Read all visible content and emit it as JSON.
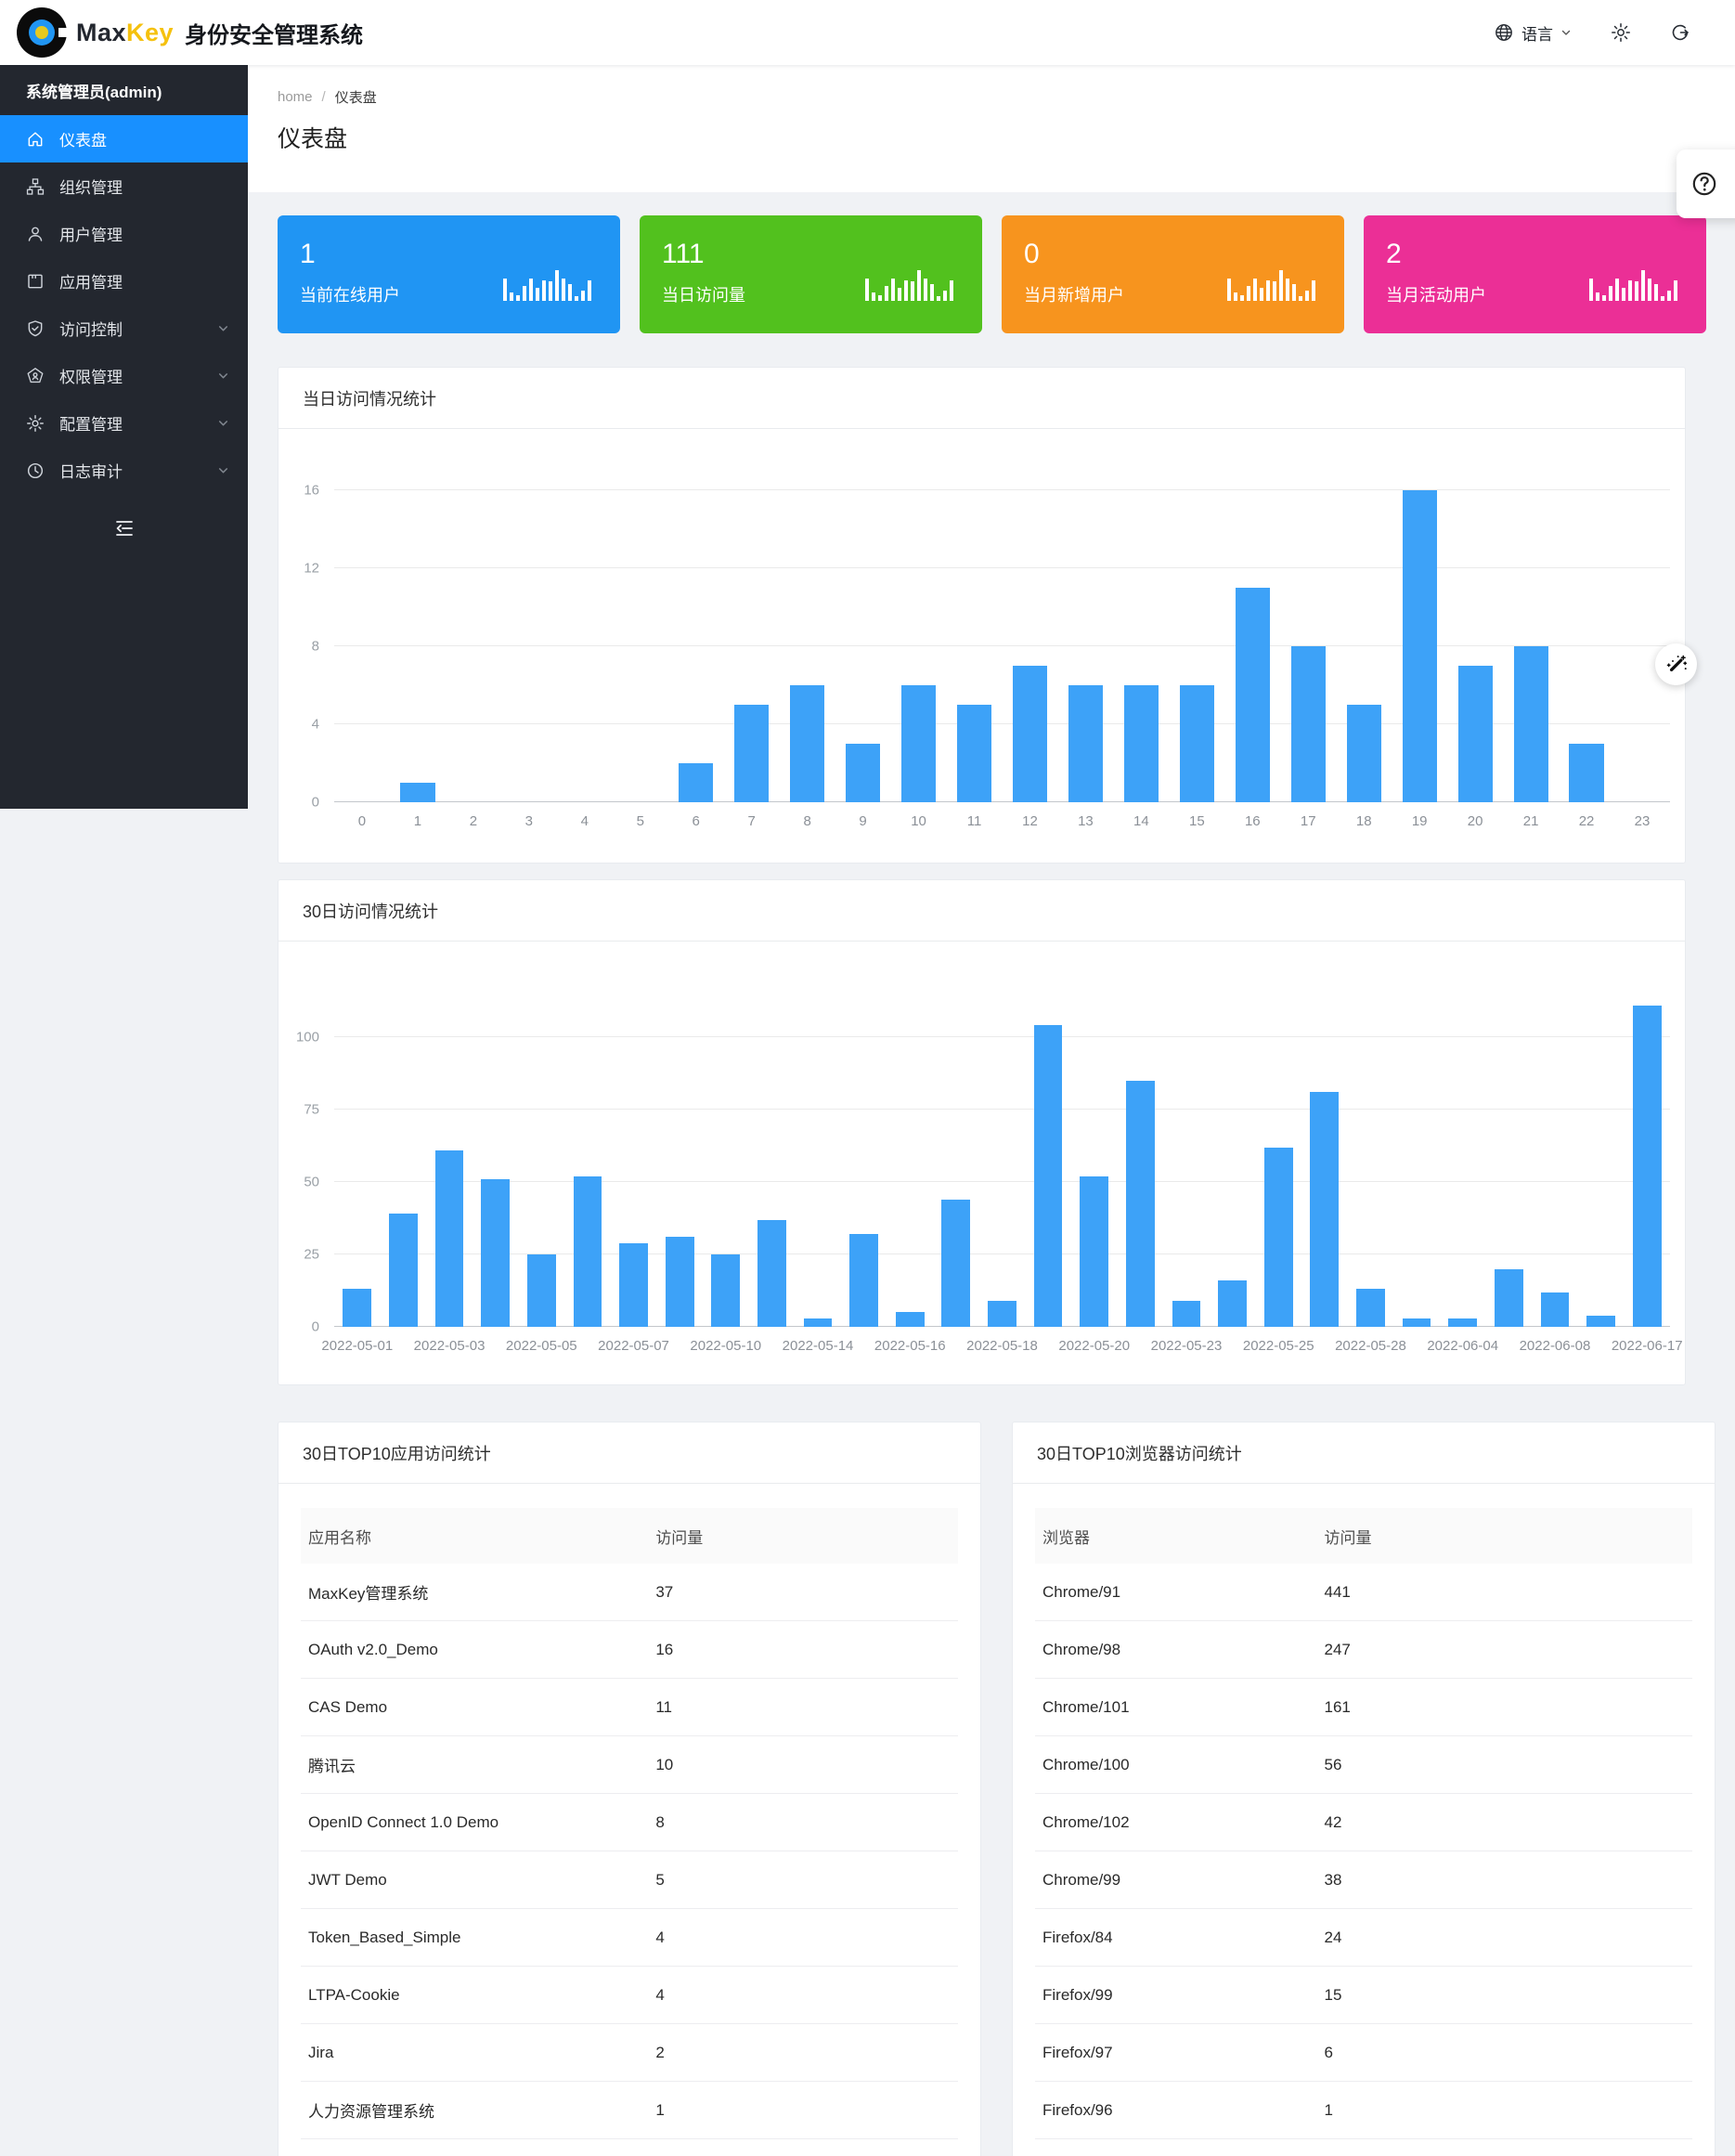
{
  "topbar": {
    "brand_max": "Max",
    "brand_key": "Key",
    "system_title": "身份安全管理系统",
    "language_label": "语言"
  },
  "breadcrumb": {
    "home": "home",
    "sep": "/",
    "current": "仪表盘"
  },
  "page_title": "仪表盘",
  "sidebar": {
    "user": "系统管理员(admin)",
    "items": [
      {
        "id": "dashboard",
        "icon": "home-icon",
        "label": "仪表盘",
        "active": true
      },
      {
        "id": "org",
        "icon": "org-icon",
        "label": "组织管理"
      },
      {
        "id": "users",
        "icon": "user-icon",
        "label": "用户管理"
      },
      {
        "id": "apps",
        "icon": "app-icon",
        "label": "应用管理"
      },
      {
        "id": "access-control",
        "icon": "shield-check-icon",
        "label": "访问控制",
        "expandable": true
      },
      {
        "id": "permissions",
        "icon": "certificate-icon",
        "label": "权限管理",
        "expandable": true
      },
      {
        "id": "config",
        "icon": "gear-icon",
        "label": "配置管理",
        "expandable": true
      },
      {
        "id": "audit",
        "icon": "clock-icon",
        "label": "日志审计",
        "expandable": true
      }
    ]
  },
  "stat_cards": [
    {
      "value": "1",
      "label": "当前在线用户",
      "color": "#2095f3"
    },
    {
      "value": "111",
      "label": "当日访问量",
      "color": "#52c11e"
    },
    {
      "value": "0",
      "label": "当月新增用户",
      "color": "#f7941e"
    },
    {
      "value": "2",
      "label": "当月活动用户",
      "color": "#eb2f96"
    }
  ],
  "chart_data": [
    {
      "type": "bar",
      "title": "当日访问情况统计",
      "categories": [
        "0",
        "1",
        "2",
        "3",
        "4",
        "5",
        "6",
        "7",
        "8",
        "9",
        "10",
        "11",
        "12",
        "13",
        "14",
        "15",
        "16",
        "17",
        "18",
        "19",
        "20",
        "21",
        "22",
        "23"
      ],
      "values": [
        0,
        1,
        0,
        0,
        0,
        0,
        2,
        5,
        6,
        3,
        6,
        5,
        7,
        6,
        6,
        6,
        11,
        8,
        5,
        16,
        7,
        8,
        3,
        0
      ],
      "xlabel": "",
      "ylabel": "",
      "y_ticks": [
        0,
        4,
        8,
        12,
        16
      ],
      "ylim": [
        0,
        17.8
      ],
      "grid": true,
      "legend": "none",
      "bar_color": "#3da2f8"
    },
    {
      "type": "bar",
      "title": "30日访问情况统计",
      "categories": [
        "2022-05-01",
        "",
        "2022-05-03",
        "",
        "2022-05-05",
        "",
        "2022-05-07",
        "",
        "2022-05-10",
        "",
        "2022-05-14",
        "",
        "2022-05-16",
        "",
        "2022-05-18",
        "",
        "2022-05-20",
        "",
        "2022-05-23",
        "",
        "2022-05-25",
        "",
        "2022-05-28",
        "",
        "2022-06-04",
        "",
        "2022-06-08",
        "",
        "2022-06-17"
      ],
      "values": [
        13,
        39,
        61,
        51,
        25,
        52,
        29,
        31,
        25,
        37,
        3,
        32,
        5,
        44,
        9,
        104,
        52,
        85,
        9,
        16,
        62,
        81,
        13,
        3,
        3,
        20,
        12,
        4,
        111
      ],
      "xlabel": "",
      "ylabel": "",
      "y_ticks": [
        0,
        25,
        50,
        75,
        100
      ],
      "ylim": [
        0,
        124
      ],
      "grid": true,
      "legend": "none",
      "bar_color": "#3da2f8"
    }
  ],
  "tables": [
    {
      "title": "30日TOP10应用访问统计",
      "headers": [
        "应用名称",
        "访问量"
      ],
      "name_col_pct": 54,
      "rows": [
        [
          "MaxKey管理系统",
          "37"
        ],
        [
          "OAuth v2.0_Demo",
          "16"
        ],
        [
          "CAS Demo",
          "11"
        ],
        [
          "腾讯云",
          "10"
        ],
        [
          "OpenID Connect 1.0 Demo",
          "8"
        ],
        [
          "JWT Demo",
          "5"
        ],
        [
          "Token_Based_Simple",
          "4"
        ],
        [
          "LTPA-Cookie",
          "4"
        ],
        [
          "Jira",
          "2"
        ],
        [
          "人力资源管理系统",
          "1"
        ]
      ]
    },
    {
      "title": "30日TOP10浏览器访问统计",
      "headers": [
        "浏览器",
        "访问量"
      ],
      "name_col_pct": 44,
      "rows": [
        [
          "Chrome/91",
          "441"
        ],
        [
          "Chrome/98",
          "247"
        ],
        [
          "Chrome/101",
          "161"
        ],
        [
          "Chrome/100",
          "56"
        ],
        [
          "Chrome/102",
          "42"
        ],
        [
          "Chrome/99",
          "38"
        ],
        [
          "Firefox/84",
          "24"
        ],
        [
          "Firefox/99",
          "15"
        ],
        [
          "Firefox/97",
          "6"
        ],
        [
          "Firefox/96",
          "1"
        ]
      ]
    }
  ]
}
